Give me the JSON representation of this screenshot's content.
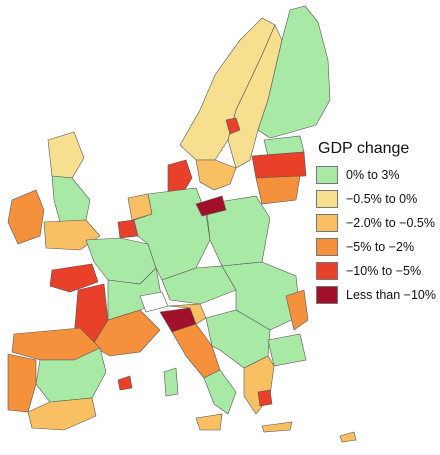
{
  "legend": {
    "title": "GDP change",
    "items": [
      {
        "label": "0% to 3%",
        "color": "#a9e9a6"
      },
      {
        "label": "−0.5% to 0%",
        "color": "#f6df8f"
      },
      {
        "label": "−2.0% to −0.5%",
        "color": "#f9c063"
      },
      {
        "label": "−5% to −2%",
        "color": "#f5913d"
      },
      {
        "label": "−10% to −5%",
        "color": "#e9402a"
      },
      {
        "label": "Less than −10%",
        "color": "#a3102a"
      }
    ]
  }
}
